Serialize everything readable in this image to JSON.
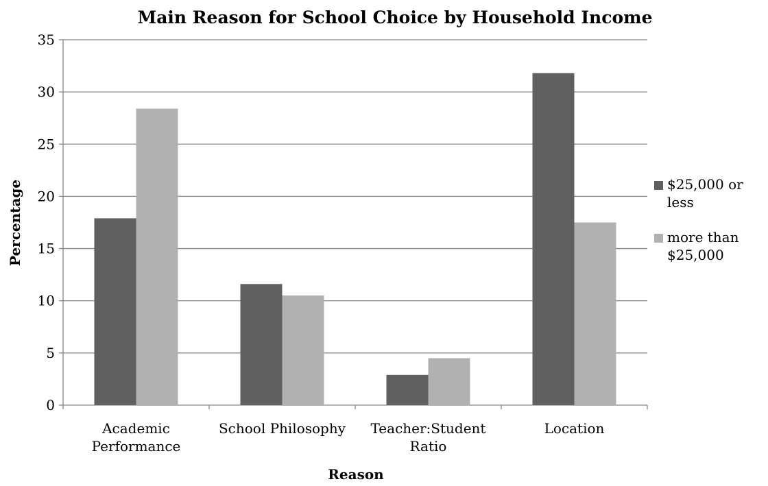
{
  "chart_data": {
    "type": "bar",
    "title": "Main Reason for School Choice by Household Income",
    "xlabel": "Reason",
    "ylabel": "Percentage",
    "ylim": [
      0,
      35
    ],
    "yticks": [
      0,
      5,
      10,
      15,
      20,
      25,
      30,
      35
    ],
    "grid": true,
    "legend_position": "right",
    "categories": [
      [
        "Academic",
        "Performance"
      ],
      [
        "School Philosophy"
      ],
      [
        "Teacher:Student",
        "Ratio"
      ],
      [
        "Location"
      ]
    ],
    "series": [
      {
        "name": "$25,000 or less",
        "name_lines": [
          "$25,000 or",
          "less"
        ],
        "color": "#606060",
        "values": [
          17.9,
          11.6,
          2.9,
          31.8
        ]
      },
      {
        "name": "more than $25,000",
        "name_lines": [
          "more than",
          "$25,000"
        ],
        "color": "#b1b1b1",
        "values": [
          28.4,
          10.5,
          4.5,
          17.5
        ]
      }
    ]
  }
}
